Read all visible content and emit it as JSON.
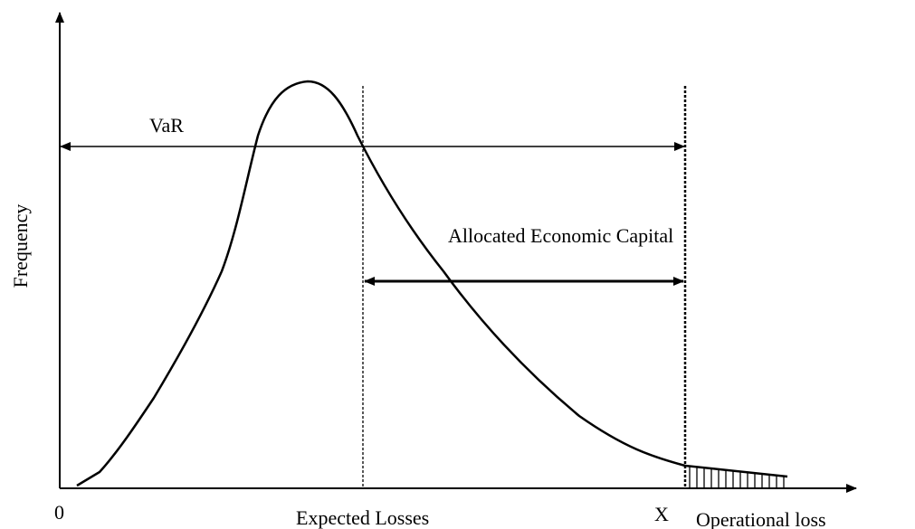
{
  "y_axis": {
    "label": "Frequency"
  },
  "x_axis": {
    "origin_label": "0",
    "label": "Operational loss"
  },
  "annotations": {
    "var": "VaR",
    "economic_capital": "Allocated Economic Capital",
    "expected_losses": "Expected Losses",
    "x_marker": "X"
  }
}
